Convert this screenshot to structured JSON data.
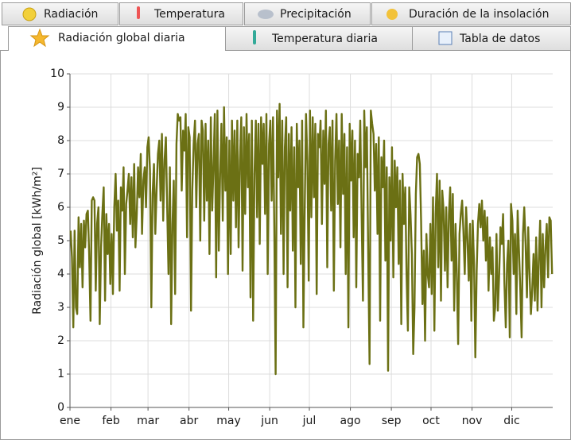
{
  "tabs": {
    "row1": [
      "Radiación",
      "Temperatura",
      "Precipitación",
      "Duración de la insolación"
    ],
    "row2": [
      "Radiación global diaria",
      "Temperatura diaria",
      "Tabla de datos"
    ]
  },
  "chart_data": {
    "type": "line",
    "ylabel": "Radiación global [kWh/m²]",
    "color": "#6b7014",
    "grid": true,
    "xlim": [
      0,
      365
    ],
    "ylim": [
      0,
      10
    ],
    "yticks": [
      0,
      1,
      2,
      3,
      4,
      5,
      6,
      7,
      8,
      9,
      10
    ],
    "xticks": [
      {
        "value": 0,
        "label": "ene"
      },
      {
        "value": 31,
        "label": "feb"
      },
      {
        "value": 59,
        "label": "mar"
      },
      {
        "value": 90,
        "label": "abr"
      },
      {
        "value": 120,
        "label": "may"
      },
      {
        "value": 151,
        "label": "jun"
      },
      {
        "value": 181,
        "label": "jul"
      },
      {
        "value": 212,
        "label": "ago"
      },
      {
        "value": 243,
        "label": "sep"
      },
      {
        "value": 273,
        "label": "oct"
      },
      {
        "value": 304,
        "label": "nov"
      },
      {
        "value": 334,
        "label": "dic"
      }
    ],
    "values": [
      5.3,
      4.5,
      2.4,
      5.3,
      3.0,
      2.8,
      5.7,
      4.2,
      5.5,
      3.6,
      5.6,
      4.8,
      5.8,
      5.9,
      4.6,
      2.6,
      6.2,
      6.3,
      6.2,
      3.5,
      5.5,
      6.0,
      2.5,
      4.8,
      5.8,
      6.6,
      3.2,
      5.8,
      4.6,
      5.5,
      3.7,
      5.2,
      3.4,
      6.0,
      7.0,
      5.3,
      6.2,
      3.5,
      6.6,
      5.9,
      7.2,
      4.0,
      6.1,
      6.5,
      7.0,
      5.5,
      6.9,
      5.1,
      7.3,
      4.8,
      5.8,
      7.2,
      6.3,
      7.6,
      5.2,
      6.8,
      7.2,
      6.0,
      7.8,
      8.1,
      7.1,
      3.0,
      6.4,
      7.3,
      5.2,
      6.5,
      7.6,
      8.0,
      6.2,
      8.2,
      5.6,
      7.4,
      8.1,
      6.0,
      4.0,
      7.2,
      2.5,
      5.5,
      6.8,
      3.4,
      7.9,
      8.8,
      8.6,
      8.7,
      6.5,
      8.3,
      7.7,
      8.8,
      5.1,
      8.4,
      8.1,
      2.9,
      6.5,
      7.9,
      8.6,
      6.0,
      7.9,
      8.2,
      5.0,
      8.6,
      8.3,
      5.6,
      8.5,
      6.2,
      8.0,
      4.6,
      8.7,
      5.9,
      7.2,
      8.8,
      3.9,
      8.9,
      4.7,
      7.0,
      8.5,
      5.6,
      9.0,
      6.5,
      8.1,
      4.0,
      8.0,
      4.6,
      8.6,
      6.2,
      8.3,
      5.4,
      8.6,
      4.8,
      7.4,
      8.7,
      4.1,
      8.4,
      5.8,
      8.8,
      6.6,
      8.2,
      3.3,
      8.6,
      2.6,
      7.0,
      8.6,
      5.7,
      8.5,
      4.9,
      8.7,
      7.3,
      8.5,
      5.8,
      8.8,
      4.0,
      7.9,
      8.6,
      6.2,
      8.7,
      5.4,
      1.0,
      8.9,
      6.9,
      9.1,
      5.2,
      8.6,
      4.0,
      7.8,
      8.7,
      3.6,
      8.2,
      5.9,
      8.4,
      4.7,
      7.8,
      3.0,
      8.5,
      6.6,
      8.0,
      4.3,
      8.6,
      2.4,
      6.0,
      8.8,
      7.4,
      3.8,
      8.9,
      5.7,
      8.7,
      6.3,
      8.5,
      3.4,
      8.2,
      7.8,
      8.6,
      5.5,
      8.3,
      6.7,
      8.9,
      4.2,
      7.9,
      8.4,
      5.9,
      8.6,
      3.5,
      7.4,
      8.8,
      6.1,
      8.0,
      4.8,
      8.8,
      6.4,
      8.2,
      4.0,
      7.8,
      2.4,
      8.5,
      6.8,
      8.3,
      5.1,
      8.0,
      3.6,
      7.6,
      6.9,
      8.6,
      5.8,
      3.2,
      8.9,
      7.2,
      8.4,
      4.6,
      1.3,
      8.9,
      8.5,
      8.2,
      6.5,
      7.9,
      5.2,
      8.1,
      2.6,
      7.5,
      6.6,
      8.0,
      4.4,
      7.2,
      1.1,
      6.9,
      5.0,
      7.8,
      3.9,
      7.4,
      6.0,
      7.2,
      4.3,
      6.8,
      2.5,
      7.0,
      5.5,
      6.6,
      4.0,
      2.3,
      6.6,
      5.8,
      4.6,
      1.6,
      3.0,
      6.4,
      7.5,
      7.6,
      7.3,
      5.6,
      3.1,
      4.7,
      2.0,
      5.2,
      4.0,
      3.6,
      5.5,
      3.4,
      6.3,
      2.3,
      5.8,
      7.0,
      4.2,
      6.8,
      3.2,
      6.5,
      5.9,
      4.1,
      6.0,
      3.6,
      5.8,
      6.6,
      4.4,
      6.4,
      2.9,
      5.5,
      4.0,
      1.9,
      5.2,
      5.8,
      6.2,
      5.3,
      4.0,
      6.0,
      5.1,
      3.8,
      5.5,
      2.6,
      5.6,
      4.3,
      1.5,
      4.1,
      5.5,
      6.1,
      5.4,
      6.2,
      5.0,
      5.9,
      4.4,
      5.7,
      3.5,
      5.1,
      4.0,
      4.8,
      2.6,
      3.0,
      5.2,
      2.9,
      3.9,
      5.4,
      4.9,
      5.8,
      3.7,
      2.4,
      4.3,
      5.0,
      2.1,
      6.1,
      5.6,
      4.0,
      5.2,
      2.8,
      5.9,
      4.7,
      3.5,
      2.1,
      5.2,
      6.0,
      4.9,
      3.3,
      5.4,
      4.0,
      2.8,
      3.5,
      4.6,
      3.2,
      5.1,
      2.9,
      4.4,
      5.6,
      3.0,
      5.2,
      3.6,
      4.8,
      5.5,
      3.9,
      5.7,
      5.6,
      4.0
    ]
  }
}
